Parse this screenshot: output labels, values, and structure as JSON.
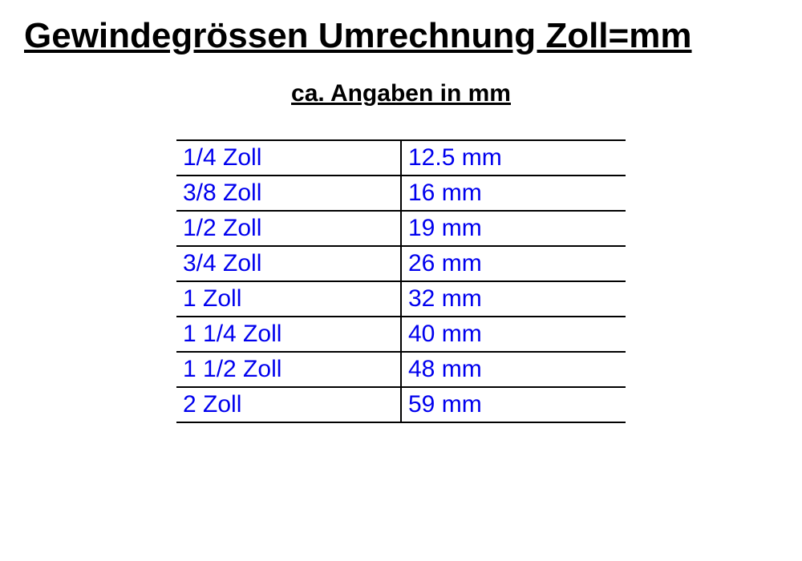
{
  "title": "Gewindegrössen Umrechnung Zoll=mm",
  "subtitle": "ca. Angaben in mm",
  "table": {
    "columns": [
      "zoll",
      "mm"
    ],
    "rows": [
      {
        "zoll": "1/4 Zoll",
        "mm": "12.5 mm"
      },
      {
        "zoll": "3/8 Zoll",
        "mm": "16 mm"
      },
      {
        "zoll": "1/2 Zoll",
        "mm": "19 mm"
      },
      {
        "zoll": "3/4 Zoll",
        "mm": "26 mm"
      },
      {
        "zoll": "1 Zoll",
        "mm": "32 mm"
      },
      {
        "zoll": "1 1/4 Zoll",
        "mm": "40 mm"
      },
      {
        "zoll": "1 1/2 Zoll",
        "mm": "48 mm"
      },
      {
        "zoll": "2 Zoll",
        "mm": "59 mm"
      }
    ],
    "cell_text_color": "#0000ee",
    "border_color": "#000000",
    "cell_fontsize": 30
  },
  "title_fontsize": 44,
  "subtitle_fontsize": 30,
  "background_color": "#ffffff"
}
